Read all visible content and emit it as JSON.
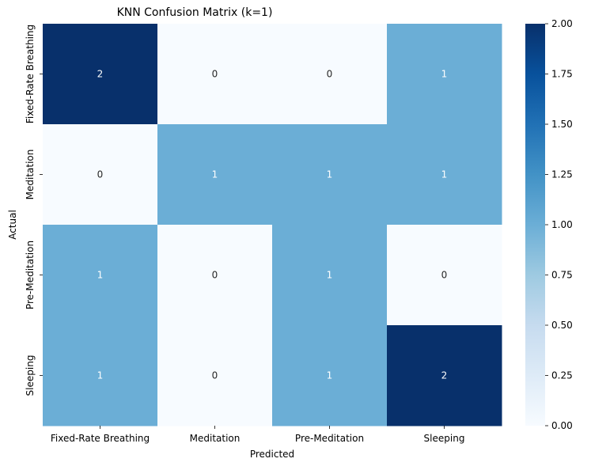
{
  "chart_data": {
    "type": "heatmap",
    "title": "KNN Confusion Matrix (k=1)",
    "xlabel": "Predicted",
    "ylabel": "Actual",
    "x_categories": [
      "Fixed-Rate Breathing",
      "Meditation",
      "Pre-Meditation",
      "Sleeping"
    ],
    "y_categories": [
      "Fixed-Rate Breathing",
      "Meditation",
      "Pre-Meditation",
      "Sleeping"
    ],
    "values": [
      [
        2,
        0,
        0,
        1
      ],
      [
        0,
        1,
        1,
        1
      ],
      [
        1,
        0,
        1,
        0
      ],
      [
        1,
        0,
        1,
        2
      ]
    ],
    "colorscale": "Blues",
    "vmin": 0,
    "vmax": 2,
    "colorbar_ticks": [
      "0.00",
      "0.25",
      "0.50",
      "0.75",
      "1.00",
      "1.25",
      "1.50",
      "1.75",
      "2.00"
    ],
    "colors": {
      "low": "#f7fbff",
      "mid": "#6baed6",
      "high": "#08306b",
      "text_dark_cell": "#ffffff",
      "text_light_cell": "#262626"
    }
  }
}
